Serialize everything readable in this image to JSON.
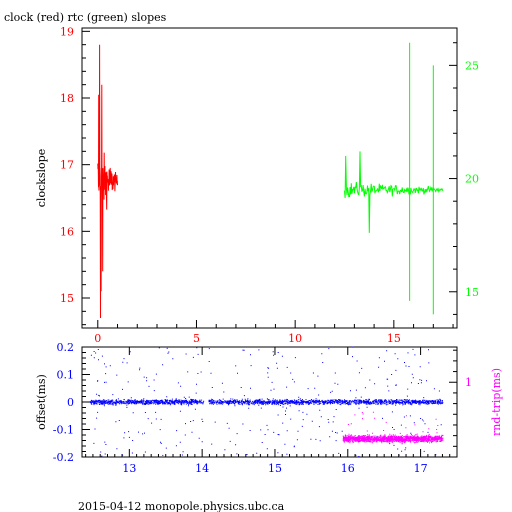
{
  "header": {
    "title": "clock (red) rtc (green) slopes"
  },
  "footer": {
    "text": "2015-04-12 monopole.physics.ubc.ca"
  },
  "colors": {
    "red": "#ff0000",
    "green": "#00ff00",
    "blue": "#0000ff",
    "magenta": "#ff00ff",
    "black": "#000000"
  },
  "chart_data": [
    {
      "type": "line",
      "title": "clock (red) rtc (green) slopes",
      "ylabel": "clockslope",
      "xlim": [
        -0.8,
        18.2
      ],
      "ylim": [
        14.55,
        19.05
      ],
      "y2lim": [
        13.4,
        26.65
      ],
      "x_ticks": [
        "0",
        "5",
        "10",
        "15"
      ],
      "y_ticks": [
        "15",
        "16",
        "17",
        "18",
        "19"
      ],
      "y2_ticks": [
        "15",
        "20",
        "25"
      ],
      "series": [
        {
          "color": "red",
          "axis": "left",
          "x_range": [
            0,
            1
          ],
          "center": 16.75,
          "spread_min": 14.7,
          "spread_max": 18.8
        },
        {
          "color": "green",
          "axis": "right",
          "x_range": [
            12.5,
            17.5
          ],
          "center": 19.5,
          "spikes": [
            {
              "x": 15.8,
              "min": 14.6,
              "max": 26.0
            },
            {
              "x": 17.0,
              "min": 14.0,
              "max": 25.0
            }
          ]
        }
      ]
    },
    {
      "type": "scatter",
      "ylabel": "offset(ms)",
      "y2label": "rnd-trip(ms)",
      "xlim": [
        12.35,
        17.5
      ],
      "ylim": [
        -0.2,
        0.2
      ],
      "y2lim": [
        0.3,
        1.33
      ],
      "x_ticks": [
        "13",
        "14",
        "15",
        "16",
        "17"
      ],
      "y_ticks": [
        "0.2",
        "0.1",
        "0",
        "-0.1",
        "-0.2"
      ],
      "y2_ticks": [
        "1"
      ],
      "series": [
        {
          "color": "blue",
          "axis": "left",
          "x_range": [
            12.45,
            17.3
          ],
          "center": 0.0,
          "spread": 0.015
        },
        {
          "color": "magenta",
          "axis": "right",
          "x_range": [
            15.93,
            17.3
          ],
          "center": 0.47,
          "spread": 0.05
        }
      ]
    }
  ]
}
